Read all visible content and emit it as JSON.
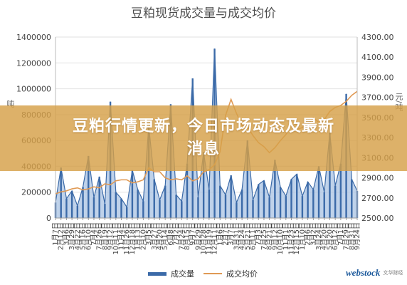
{
  "chart_data": {
    "type": "bar",
    "title": "豆粕现货成交量与成交均价",
    "ylabel_left": "吨",
    "ylabel_right": "元/吨",
    "ylim_left": [
      0,
      1400000
    ],
    "yticks_left": [
      "0",
      "200000",
      "400000",
      "600000",
      "800000",
      "1000000",
      "1200000",
      "1400000"
    ],
    "ylim_right": [
      2500,
      4300
    ],
    "yticks_right": [
      "2500.00",
      "2700.00",
      "2900.00",
      "3100.00",
      "3300.00",
      "3500.00",
      "3700.00",
      "3900.00",
      "4100.00",
      "4300.00"
    ],
    "categories": [
      "1月7日",
      "2月12日",
      "3月6日",
      "3月29日",
      "4月22日",
      "5月16日",
      "6月10日",
      "7月4日",
      "7月26日",
      "8月19日",
      "9月12日",
      "10月11日",
      "11月4日",
      "11月26日",
      "12月18日",
      "1月13日",
      "2月10日",
      "3月5日",
      "3月27日",
      "4月20日",
      "5月14日",
      "6月8日",
      "7月2日",
      "7月24日",
      "8月15日",
      "9月7日",
      "9月29日",
      "10月28日",
      "11月19日",
      "12月11日",
      "1月6日",
      "2月7日",
      "3月7日",
      "3月31日",
      "4月24日",
      "5月21日",
      "6月11日",
      "7月3日",
      "7月25日",
      "8月21日",
      "9月12日",
      "10月10日",
      "11月1日",
      "11月23日",
      "12月15日",
      "1月10日",
      "2月6日",
      "3月2日",
      "3月24日",
      "4月20日",
      "5月20日",
      "6月12日",
      "7月1日",
      "7月29日",
      "8月31日",
      "9月24日"
    ],
    "series": [
      {
        "name": "成交量",
        "axis": "left",
        "color": "#3b6aa8",
        "values": [
          120000,
          390000,
          150000,
          210000,
          95000,
          240000,
          480000,
          160000,
          320000,
          110000,
          900000,
          200000,
          150000,
          85000,
          370000,
          220000,
          130000,
          710000,
          300000,
          140000,
          250000,
          880000,
          180000,
          130000,
          420000,
          1080000,
          160000,
          510000,
          220000,
          1310000,
          250000,
          180000,
          330000,
          120000,
          220000,
          600000,
          140000,
          260000,
          290000,
          160000,
          450000,
          240000,
          170000,
          300000,
          340000,
          170000,
          280000,
          220000,
          400000,
          200000,
          660000,
          250000,
          420000,
          960000,
          300000,
          210000
        ]
      },
      {
        "name": "成交均价",
        "axis": "right",
        "color": "#e09a55",
        "values": [
          2740,
          2760,
          2770,
          2790,
          2800,
          2780,
          2790,
          2810,
          2800,
          2840,
          2830,
          2870,
          2880,
          2880,
          2850,
          2860,
          2880,
          3000,
          2960,
          2960,
          2900,
          2880,
          2890,
          2880,
          2920,
          2870,
          2890,
          2960,
          2980,
          3030,
          3160,
          3520,
          3680,
          3540,
          3420,
          3410,
          3320,
          3250,
          3210,
          3150,
          3200,
          3270,
          3330,
          3430,
          3380,
          3400,
          3430,
          3500,
          3450,
          3480,
          3560,
          3600,
          3620,
          3660,
          3720,
          3760
        ]
      }
    ],
    "legend_position": "bottom",
    "grid": true
  },
  "banner": {
    "headline_line1": "豆粕行情更新，今日市场动态及最新",
    "headline_line2": "消息"
  },
  "watermark": {
    "brand": "webstock",
    "sub": "文华财经"
  }
}
